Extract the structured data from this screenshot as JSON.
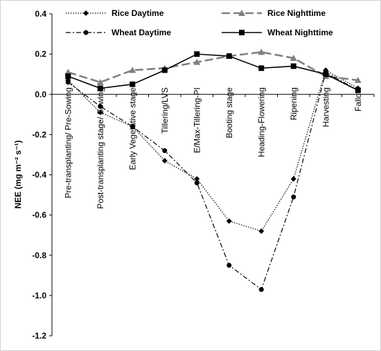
{
  "chart_data": {
    "type": "line",
    "categories": [
      "Pre-transplanting/ Pre-Sowing",
      "Post-transplanting stage/ Sowing",
      "Early Vegetative stage",
      "Tillering/LVS",
      "E/Max-Tillering-PI",
      "Booting stage",
      "Heading-Flowering",
      "Ripening",
      "Harvesting",
      "Fallow"
    ],
    "series": [
      {
        "name": "Rice Daytime",
        "values": [
          0.07,
          -0.09,
          -0.16,
          -0.33,
          -0.42,
          -0.63,
          -0.68,
          -0.42,
          0.12,
          0.03
        ],
        "color": "#000000",
        "dash": "dotted",
        "marker": "diamond"
      },
      {
        "name": "Rice Nighttime",
        "values": [
          0.11,
          0.06,
          0.12,
          0.13,
          0.16,
          0.19,
          0.21,
          0.18,
          0.09,
          0.07
        ],
        "color": "#808080",
        "dash": "longdash",
        "marker": "triangle"
      },
      {
        "name": "Wheat Daytime",
        "values": [
          0.06,
          -0.06,
          -0.16,
          -0.28,
          -0.44,
          -0.85,
          -0.97,
          -0.51,
          0.11,
          0.02
        ],
        "color": "#000000",
        "dash": "dashdot",
        "marker": "circle"
      },
      {
        "name": "Wheat Nighttime",
        "values": [
          0.09,
          0.03,
          0.05,
          0.12,
          0.2,
          0.19,
          0.13,
          0.14,
          0.1,
          0.02
        ],
        "color": "#000000",
        "dash": "solid",
        "marker": "square"
      }
    ],
    "ylabel": "NEE (mg m⁻² s⁻¹)",
    "ylim": [
      -1.2,
      0.4
    ],
    "yticks": [
      "0.4",
      "0.2",
      "0.0",
      "-0.2",
      "-0.4",
      "-0.6",
      "-0.8",
      "-1.0",
      "-1.2"
    ],
    "ytick_values": [
      0.4,
      0.2,
      0.0,
      -0.2,
      -0.4,
      -0.6,
      -0.8,
      -1.0,
      -1.2
    ],
    "grid": false,
    "legend_position": "top"
  }
}
